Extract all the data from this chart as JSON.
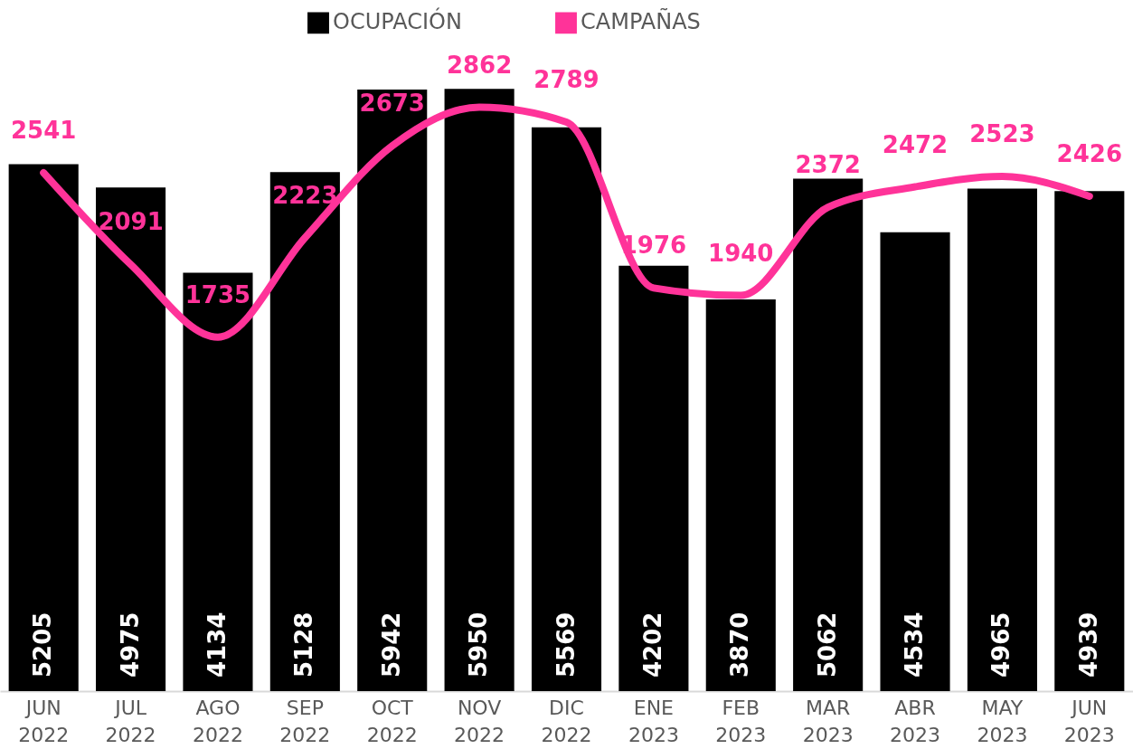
{
  "chart_data": {
    "type": "bar",
    "categories": [
      "JUN 2022",
      "JUL 2022",
      "AGO 2022",
      "SEP 2022",
      "OCT 2022",
      "NOV 2022",
      "DIC 2022",
      "ENE 2023",
      "FEB 2023",
      "MAR 2023",
      "ABR 2023",
      "MAY 2023",
      "JUN 2023"
    ],
    "series": [
      {
        "name": "OCUPACIÓN",
        "color": "#000000",
        "values": [
          5205,
          4975,
          4134,
          5128,
          5942,
          5950,
          5569,
          4202,
          3870,
          5062,
          4534,
          4965,
          4939
        ]
      },
      {
        "name": "CAMPAÑAS",
        "type": "line",
        "axis": "y2",
        "color": "#ff3399",
        "values": [
          2541,
          2091,
          1735,
          2223,
          2673,
          2862,
          2789,
          1976,
          1940,
          2372,
          2472,
          2523,
          2426
        ]
      }
    ],
    "data_labels": true,
    "legend": "top",
    "tick_labels": "x"
  }
}
